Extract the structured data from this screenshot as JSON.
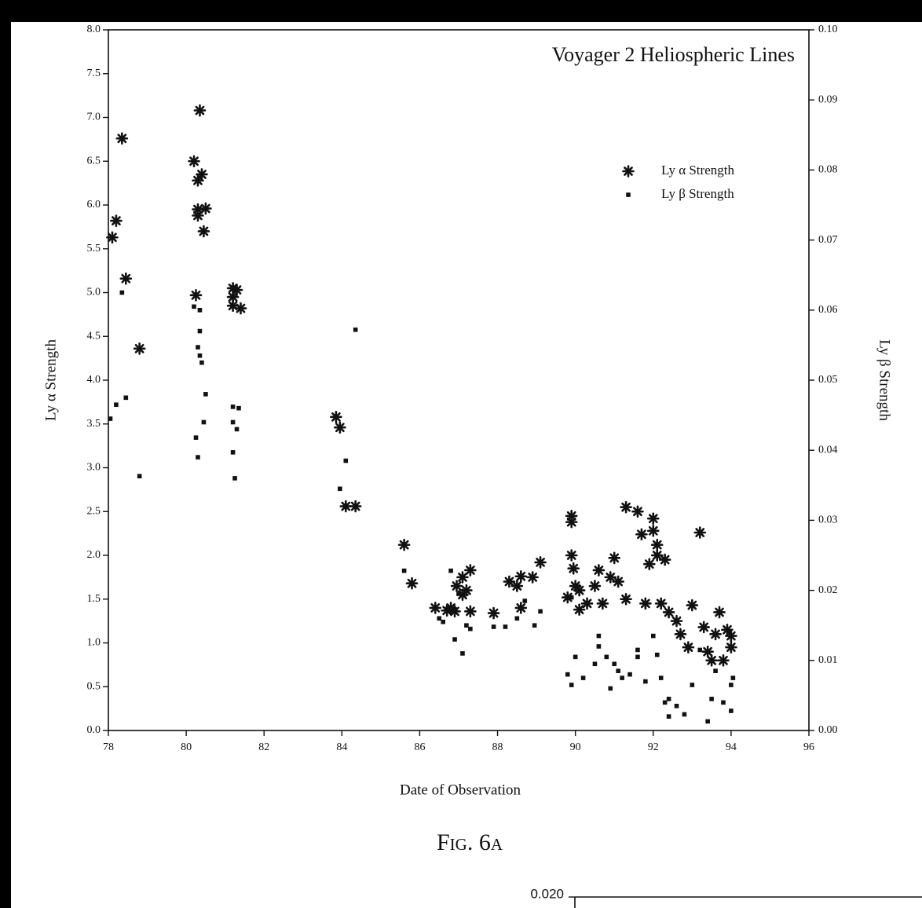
{
  "chart_data": [
    {
      "type": "scatter",
      "title": "Voyager 2 Heliospheric Lines",
      "caption": "Fig. 6a",
      "x_label": "Date of Observation",
      "y_label": "Ly α Strength",
      "y2_label": "Ly β Strength",
      "xlim": [
        78,
        96
      ],
      "xticks": [
        78,
        80,
        82,
        84,
        86,
        88,
        90,
        92,
        94,
        96
      ],
      "ylim": [
        0,
        8
      ],
      "yticks": [
        {
          "value": 0,
          "label": "0.0"
        },
        {
          "value": 0.5,
          "label": "0.5"
        },
        {
          "value": 1,
          "label": "1.0"
        },
        {
          "value": 1.5,
          "label": "1.5"
        },
        {
          "value": 2,
          "label": "2.0"
        },
        {
          "value": 2.5,
          "label": "2.5"
        },
        {
          "value": 3,
          "label": "3.0"
        },
        {
          "value": 3.5,
          "label": "3.5"
        },
        {
          "value": 4,
          "label": "4.0"
        },
        {
          "value": 4.5,
          "label": "4.5"
        },
        {
          "value": 5,
          "label": "5.0"
        },
        {
          "value": 5.5,
          "label": "5.5"
        },
        {
          "value": 6,
          "label": "6.0"
        },
        {
          "value": 6.5,
          "label": "6.5"
        },
        {
          "value": 7,
          "label": "7.0"
        },
        {
          "value": 7.5,
          "label": "7.5"
        },
        {
          "value": 8,
          "label": "8.0"
        }
      ],
      "y2lim": [
        0,
        0.1
      ],
      "y2ticks": [
        {
          "value": 0,
          "label": "0.00"
        },
        {
          "value": 0.01,
          "label": "0.01"
        },
        {
          "value": 0.02,
          "label": "0.02"
        },
        {
          "value": 0.03,
          "label": "0.03"
        },
        {
          "value": 0.04,
          "label": "0.04"
        },
        {
          "value": 0.05,
          "label": "0.05"
        },
        {
          "value": 0.06,
          "label": "0.06"
        },
        {
          "value": 0.07,
          "label": "0.07"
        },
        {
          "value": 0.08,
          "label": "0.08"
        },
        {
          "value": 0.09,
          "label": "0.09"
        },
        {
          "value": 0.1,
          "label": "0.10"
        }
      ],
      "legend": "upper right",
      "series": [
        {
          "name": "Ly α Strength",
          "marker": "star",
          "color": "#111111",
          "x": [
            78.1,
            78.2,
            78.35,
            78.45,
            78.8,
            80.2,
            80.35,
            80.3,
            80.4,
            80.3,
            80.3,
            80.5,
            80.45,
            80.25,
            81.2,
            81.3,
            81.2,
            81.4,
            81.2,
            83.85,
            83.95,
            84.1,
            84.35,
            85.6,
            85.8,
            86.4,
            86.7,
            86.8,
            86.9,
            86.95,
            87.1,
            87.1,
            87.2,
            87.3,
            87.3,
            87.9,
            88.3,
            88.5,
            88.6,
            88.6,
            88.9,
            89.1,
            89.8,
            89.9,
            89.9,
            89.9,
            89.95,
            90.0,
            90.1,
            90.1,
            90.3,
            90.5,
            90.6,
            90.7,
            90.9,
            91.0,
            91.1,
            91.3,
            91.3,
            91.6,
            91.7,
            91.8,
            91.9,
            92.0,
            92.0,
            92.1,
            92.1,
            92.2,
            92.3,
            92.4,
            92.6,
            92.7,
            92.9,
            93.0,
            93.2,
            93.3,
            93.4,
            93.5,
            93.6,
            93.7,
            93.8,
            93.9,
            94.0,
            94.0
          ],
          "values": [
            5.63,
            5.82,
            6.76,
            5.16,
            4.36,
            6.5,
            7.08,
            6.28,
            6.35,
            5.95,
            5.88,
            5.96,
            5.7,
            4.97,
            5.05,
            5.03,
            4.85,
            4.82,
            4.95,
            3.58,
            3.46,
            2.56,
            2.56,
            2.12,
            1.68,
            1.4,
            1.37,
            1.4,
            1.36,
            1.65,
            1.75,
            1.55,
            1.6,
            1.83,
            1.36,
            1.34,
            1.7,
            1.65,
            1.76,
            1.4,
            1.75,
            1.92,
            1.52,
            2.45,
            2.38,
            2.0,
            1.85,
            1.65,
            1.6,
            1.38,
            1.45,
            1.65,
            1.83,
            1.45,
            1.75,
            1.97,
            1.7,
            2.55,
            1.5,
            2.5,
            2.24,
            1.45,
            1.9,
            2.42,
            2.28,
            2.12,
            2.0,
            1.45,
            1.95,
            1.35,
            1.25,
            1.1,
            0.95,
            1.43,
            2.26,
            1.18,
            0.9,
            0.8,
            1.1,
            1.35,
            0.8,
            1.15,
            1.08,
            0.95
          ]
        },
        {
          "name": "Ly β Strength",
          "marker": "square",
          "color": "#111111",
          "axis": "y2",
          "x": [
            78.05,
            78.2,
            78.35,
            78.45,
            78.8,
            80.2,
            80.35,
            80.35,
            80.3,
            80.35,
            80.4,
            80.5,
            80.45,
            80.25,
            80.3,
            81.2,
            81.35,
            81.2,
            81.3,
            81.2,
            81.25,
            84.35,
            84.1,
            83.95,
            85.6,
            86.5,
            86.6,
            86.8,
            86.9,
            87.0,
            87.1,
            87.2,
            87.3,
            87.9,
            88.2,
            88.5,
            88.7,
            88.95,
            89.1,
            89.8,
            89.9,
            89.9,
            90.0,
            90.2,
            90.5,
            90.6,
            90.6,
            90.8,
            90.9,
            91.0,
            91.1,
            91.2,
            91.4,
            91.6,
            91.6,
            91.8,
            92.0,
            92.1,
            92.2,
            92.3,
            92.4,
            92.4,
            92.6,
            92.8,
            93.0,
            93.2,
            93.4,
            93.5,
            93.6,
            93.8,
            94.0,
            94.0,
            94.05
          ],
          "values": [
            0.0445,
            0.0465,
            0.0625,
            0.0475,
            0.0363,
            0.0605,
            0.06,
            0.057,
            0.0547,
            0.0535,
            0.0525,
            0.048,
            0.044,
            0.0418,
            0.039,
            0.0462,
            0.046,
            0.044,
            0.043,
            0.0397,
            0.036,
            0.0572,
            0.0385,
            0.0345,
            0.0228,
            0.016,
            0.0155,
            0.0228,
            0.013,
            0.0195,
            0.011,
            0.015,
            0.0145,
            0.0148,
            0.0148,
            0.016,
            0.0185,
            0.015,
            0.017,
            0.008,
            0.0065,
            0.019,
            0.0105,
            0.0075,
            0.0095,
            0.0135,
            0.012,
            0.0105,
            0.006,
            0.0095,
            0.0085,
            0.0075,
            0.008,
            0.0105,
            0.0115,
            0.007,
            0.0135,
            0.0108,
            0.0075,
            0.004,
            0.002,
            0.0045,
            0.0035,
            0.0023,
            0.0065,
            0.0115,
            0.0013,
            0.0045,
            0.0085,
            0.004,
            0.0028,
            0.0065,
            0.0075
          ]
        }
      ]
    },
    {
      "type": "scatter",
      "yticks": [
        {
          "value": 0.02,
          "label": "0.020"
        }
      ]
    }
  ]
}
